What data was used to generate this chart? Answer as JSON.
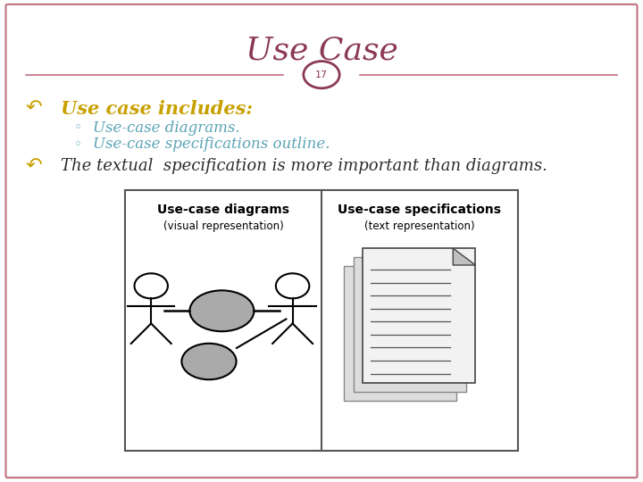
{
  "title": "Use Case",
  "slide_number": "17",
  "title_color": "#8B3A52",
  "border_color": "#C07080",
  "background_color": "#FFFFFF",
  "bullet_color": "#C8A000",
  "sub_bullet_color": "#5BA3B5",
  "main_text_color": "#2C2C2C",
  "bullet1": "Use case includes:",
  "sub_bullet1": "Use-case diagrams.",
  "sub_bullet2": "Use-case specifications outline.",
  "bullet2_a": "The textual  specification is more important than diagrams.",
  "box_left_title": "Use-case diagrams",
  "box_left_sub": "(visual representation)",
  "box_right_title": "Use-case specifications",
  "box_right_sub": "(text representation)"
}
